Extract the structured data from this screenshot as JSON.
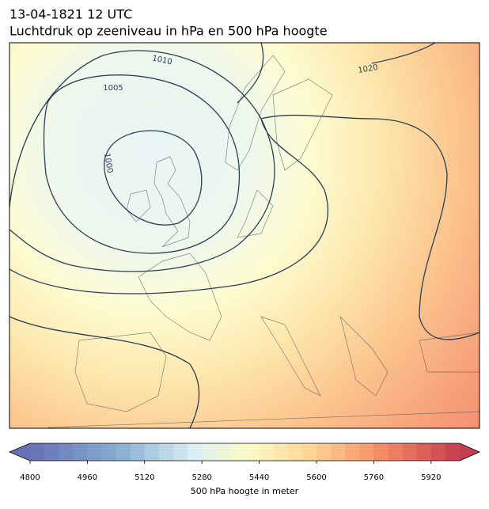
{
  "title": "13-04-1821 12 UTC",
  "subtitle": "Luchtdruk op zeeniveau in hPa en 500 hPa hoogte",
  "contour_labels": [
    "1010",
    "1005",
    "1000",
    "1020"
  ],
  "colorbar": {
    "label": "500 hPa hoogte in meter",
    "lim": [
      4800,
      6000
    ],
    "ticks": [
      4800,
      4960,
      5120,
      5280,
      5440,
      5600,
      5760,
      5920
    ]
  }
}
